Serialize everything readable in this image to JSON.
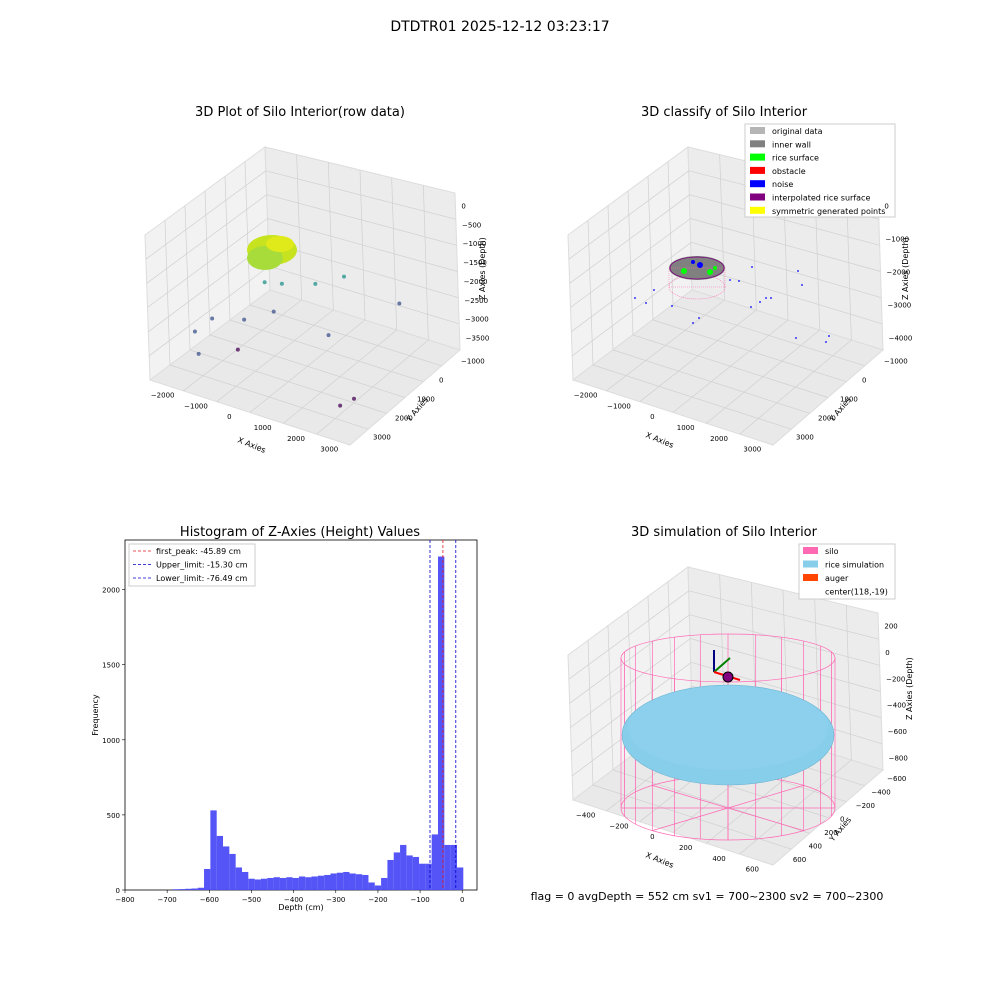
{
  "figure": {
    "suptitle": "DTDTR01 2025-12-12 03:23:17",
    "status_line": "flag = 0     avgDepth = 552 cm  sv1 = 700~2300  sv2 = 700~2300"
  },
  "colors": {
    "hist_bar": "#4b4bf7",
    "first_peak": "#e31a1c",
    "limits": "#0000cc",
    "original_data": "#b5b5b5",
    "inner_wall": "#808080",
    "rice_surface": "#00ff00",
    "obstacle": "#ff0000",
    "noise": "#0000ff",
    "interpolated": "#800080",
    "symmetric": "#ffff00",
    "silo": "#ff69b4",
    "rice_simulation": "#87ceeb",
    "auger": "#ff4500"
  },
  "chart_data": [
    {
      "type": "scatter",
      "projection": "3d",
      "title": "3D Plot of Silo Interior(row data)",
      "xlabel": "X Axies",
      "ylabel": "Y Axies",
      "zlabel": "Z Axies (Depth)",
      "xticks": [
        "−2000",
        "−1000",
        "0",
        "1000",
        "2000",
        "3000"
      ],
      "yticks": [
        "−1000",
        "0",
        "1000",
        "2000",
        "3000"
      ],
      "zticks": [
        "0",
        "−500",
        "−1000",
        "−1500",
        "−2000",
        "−2500",
        "−3000",
        "−3500"
      ],
      "xlim": [
        -2500,
        3500
      ],
      "ylim": [
        -1500,
        3500
      ],
      "zlim": [
        -3800,
        200
      ],
      "points": [
        {
          "x": -500,
          "y": 500,
          "z": -1500
        },
        {
          "x": -200,
          "y": 800,
          "z": -1600
        },
        {
          "x": 300,
          "y": 1500,
          "z": -1800
        },
        {
          "x": 800,
          "y": 2000,
          "z": -1700
        },
        {
          "x": -1800,
          "y": -600,
          "z": -2700
        },
        {
          "x": -1500,
          "y": -300,
          "z": -2400
        },
        {
          "x": -900,
          "y": 200,
          "z": -2500
        },
        {
          "x": -300,
          "y": 600,
          "z": -2300
        },
        {
          "x": 1200,
          "y": 800,
          "z": -2600
        },
        {
          "x": 2100,
          "y": 2500,
          "z": -2300
        },
        {
          "x": 2700,
          "y": -800,
          "z": -3300
        },
        {
          "x": 2900,
          "y": -500,
          "z": -3200
        },
        {
          "x": -1400,
          "y": -1000,
          "z": -3000
        },
        {
          "x": -800,
          "y": -200,
          "z": -3100
        }
      ]
    },
    {
      "type": "scatter",
      "projection": "3d",
      "title": "3D classify of Silo Interior",
      "xlabel": "X Axies",
      "ylabel": "Y Axies",
      "zlabel": "Z Axies (Depth)",
      "xticks": [
        "−2000",
        "−1000",
        "0",
        "1000",
        "2000",
        "3000"
      ],
      "yticks": [
        "−1000",
        "0",
        "1000",
        "2000",
        "3000"
      ],
      "zticks": [
        "0",
        "−1000",
        "−2000",
        "−3000",
        "−4000"
      ],
      "xlim": [
        -2500,
        3500
      ],
      "ylim": [
        -1500,
        3500
      ],
      "zlim": [
        -4500,
        500
      ],
      "zticks_extra": [
        "1000"
      ],
      "legend": {
        "loc": "upper right",
        "entries": [
          {
            "label": "original data",
            "color": "#b5b5b5"
          },
          {
            "label": "inner wall",
            "color": "#808080"
          },
          {
            "label": "rice surface",
            "color": "#00ff00"
          },
          {
            "label": "obstacle",
            "color": "#ff0000"
          },
          {
            "label": "noise",
            "color": "#0000ff"
          },
          {
            "label": "interpolated rice surface",
            "color": "#800080"
          },
          {
            "label": "symmetric generated points",
            "color": "#ffff00"
          }
        ]
      }
    },
    {
      "type": "bar",
      "title": "Histogram of Z-Axies (Height) Values",
      "xlabel": "Depth (cm)",
      "ylabel": "Frequency",
      "xlim": [
        -800,
        35
      ],
      "ylim": [
        0,
        2330
      ],
      "xticks": [
        -800,
        -700,
        -600,
        -500,
        -400,
        -300,
        -200,
        -100,
        0
      ],
      "yticks": [
        0,
        500,
        1000,
        1500,
        2000
      ],
      "bin_width": 15,
      "bins": [
        {
          "x": -680,
          "v": 5
        },
        {
          "x": -665,
          "v": 6
        },
        {
          "x": -650,
          "v": 8
        },
        {
          "x": -635,
          "v": 10
        },
        {
          "x": -620,
          "v": 15
        },
        {
          "x": -605,
          "v": 140
        },
        {
          "x": -590,
          "v": 530
        },
        {
          "x": -575,
          "v": 360
        },
        {
          "x": -560,
          "v": 290
        },
        {
          "x": -545,
          "v": 240
        },
        {
          "x": -530,
          "v": 150
        },
        {
          "x": -515,
          "v": 120
        },
        {
          "x": -500,
          "v": 75
        },
        {
          "x": -485,
          "v": 70
        },
        {
          "x": -470,
          "v": 75
        },
        {
          "x": -455,
          "v": 80
        },
        {
          "x": -440,
          "v": 85
        },
        {
          "x": -425,
          "v": 80
        },
        {
          "x": -410,
          "v": 85
        },
        {
          "x": -395,
          "v": 80
        },
        {
          "x": -380,
          "v": 90
        },
        {
          "x": -365,
          "v": 85
        },
        {
          "x": -350,
          "v": 90
        },
        {
          "x": -335,
          "v": 95
        },
        {
          "x": -320,
          "v": 100
        },
        {
          "x": -305,
          "v": 110
        },
        {
          "x": -290,
          "v": 115
        },
        {
          "x": -275,
          "v": 120
        },
        {
          "x": -260,
          "v": 110
        },
        {
          "x": -245,
          "v": 105
        },
        {
          "x": -230,
          "v": 100
        },
        {
          "x": -215,
          "v": 50
        },
        {
          "x": -200,
          "v": 30
        },
        {
          "x": -185,
          "v": 80
        },
        {
          "x": -170,
          "v": 200
        },
        {
          "x": -155,
          "v": 250
        },
        {
          "x": -140,
          "v": 300
        },
        {
          "x": -125,
          "v": 230
        },
        {
          "x": -110,
          "v": 220
        },
        {
          "x": -95,
          "v": 175
        },
        {
          "x": -80,
          "v": 175
        },
        {
          "x": -65,
          "v": 370
        },
        {
          "x": -50,
          "v": 2220
        },
        {
          "x": -35,
          "v": 300
        },
        {
          "x": -20,
          "v": 300
        },
        {
          "x": -5,
          "v": 150
        }
      ],
      "vlines": [
        {
          "label": "first_peak: -45.89 cm",
          "x": -45.89,
          "color": "#e31a1c"
        },
        {
          "label": "Upper_limit: -15.30 cm",
          "x": -15.3,
          "color": "#0000cc"
        },
        {
          "label": "Lower_limit: -76.49 cm",
          "x": -76.49,
          "color": "#0000cc"
        }
      ],
      "legend": "upper left"
    },
    {
      "type": "mesh",
      "projection": "3d",
      "title": "3D simulation of Silo Interior",
      "xlabel": "X Axies",
      "ylabel": "Y Axies",
      "zlabel": "Z Axies (Depth)",
      "xticks": [
        "−400",
        "−200",
        "0",
        "200",
        "400",
        "600"
      ],
      "yticks": [
        "−600",
        "−400",
        "−200",
        "0",
        "200",
        "400",
        "600"
      ],
      "zticks": [
        "200",
        "0",
        "−200",
        "−400",
        "−600",
        "−800"
      ],
      "xlim": [
        -500,
        700
      ],
      "ylim": [
        -700,
        700
      ],
      "zlim": [
        -1000,
        300
      ],
      "legend": {
        "loc": "upper right",
        "entries": [
          {
            "label": "silo",
            "color": "#ff69b4"
          },
          {
            "label": "rice simulation",
            "color": "#87ceeb"
          },
          {
            "label": "auger",
            "color": "#ff4500"
          },
          {
            "label": "center(118,-19)",
            "color": ""
          }
        ]
      }
    }
  ]
}
